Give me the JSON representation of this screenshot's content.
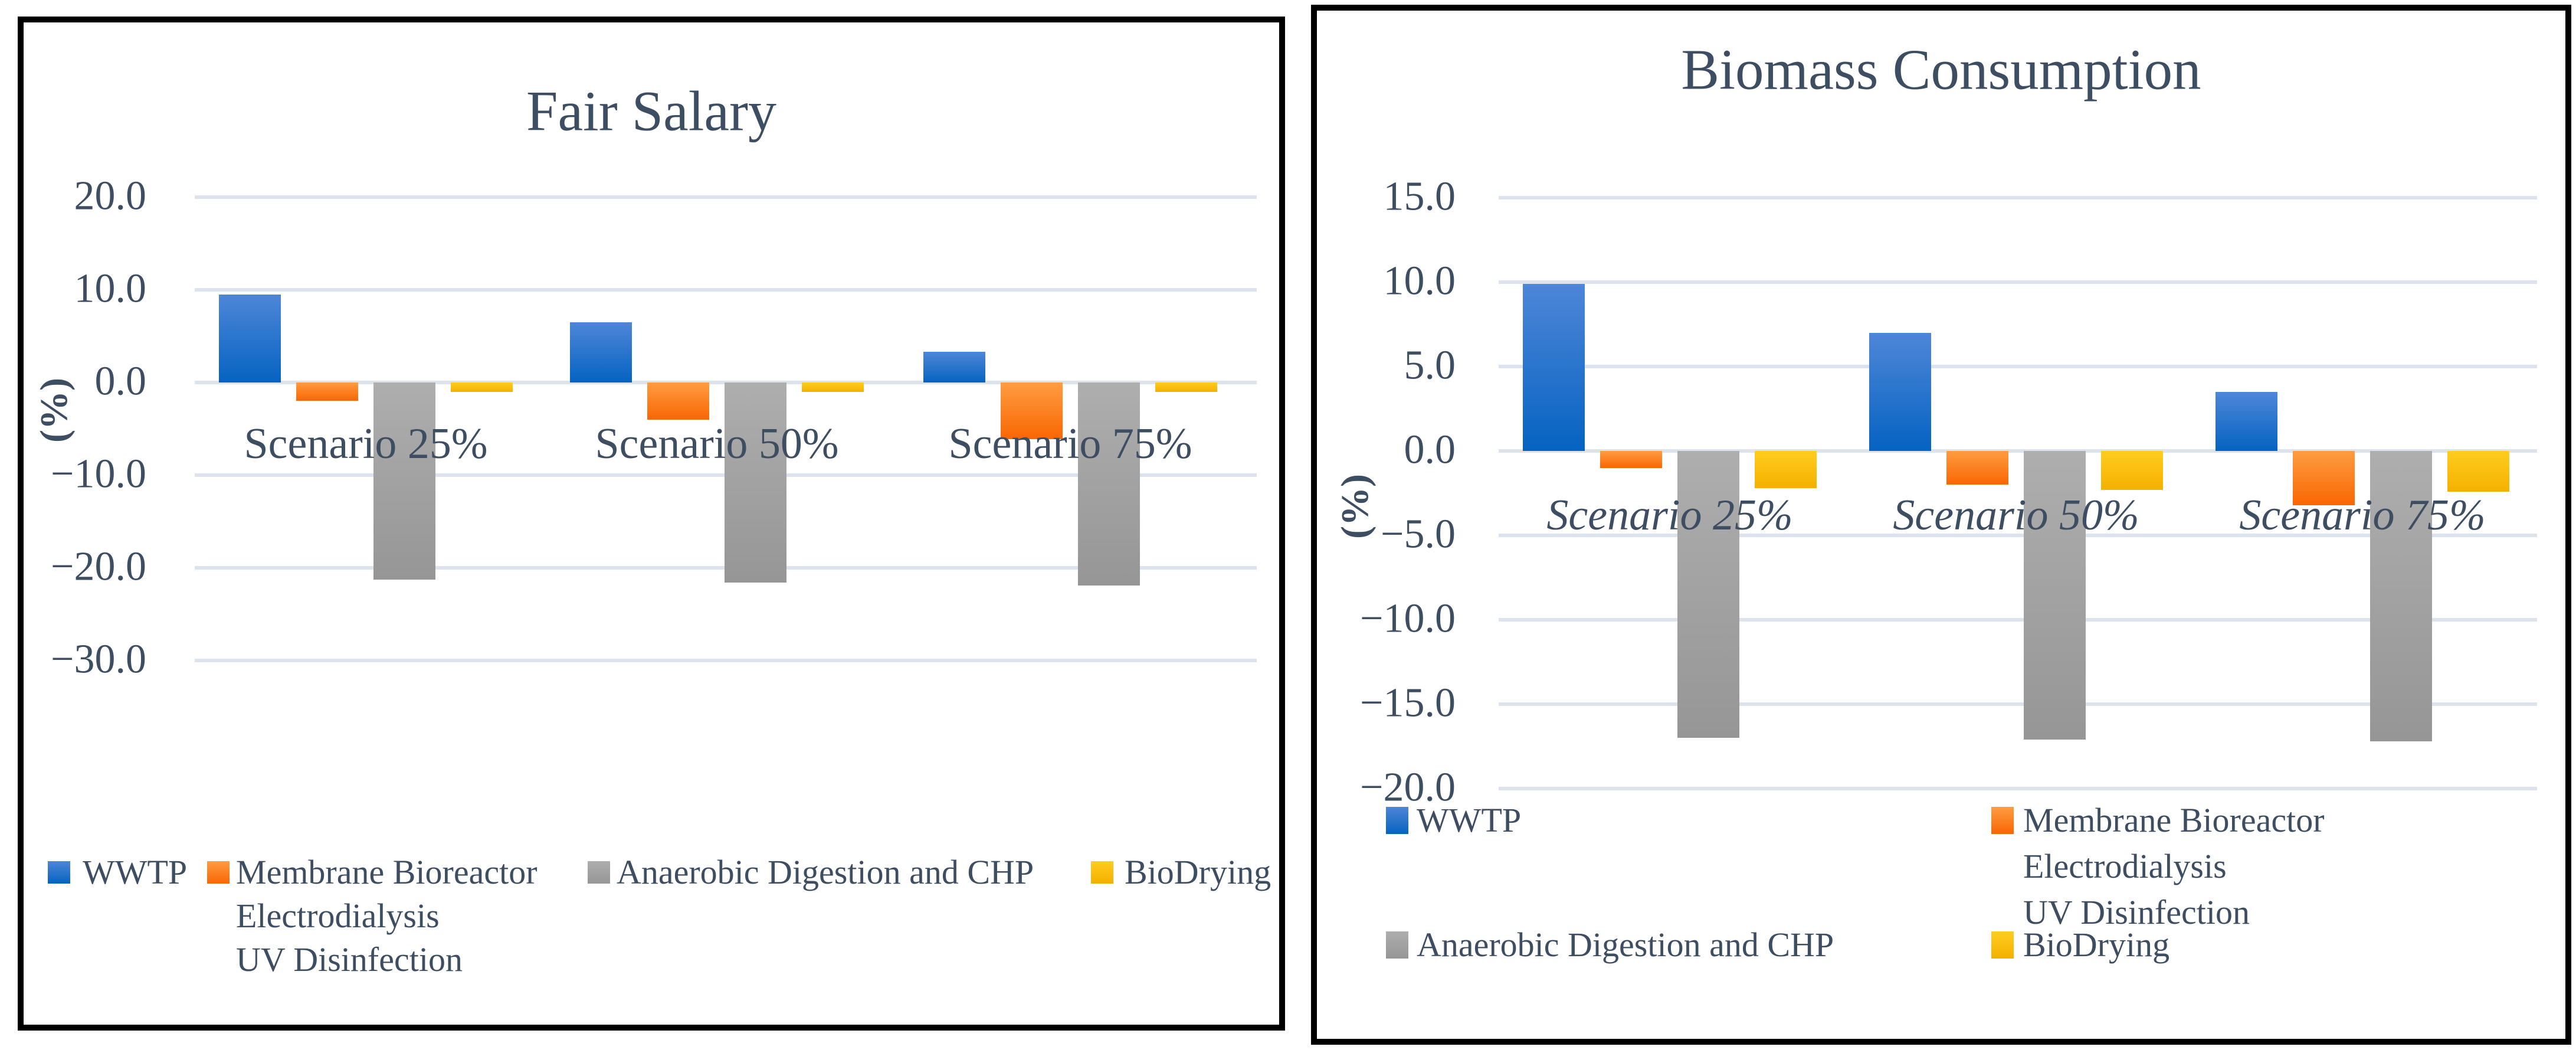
{
  "figure": {
    "panel_titles": [
      "Fair Salary",
      "Biomass Consumption"
    ]
  },
  "colors": {
    "text": "#3D4E63",
    "gridline": "#DCE3ED",
    "frame": "#000000",
    "background": "#FFFFFF",
    "series_gradients": [
      {
        "name": "blue",
        "top": "#4E86D8",
        "bottom": "#0563C1"
      },
      {
        "name": "orange",
        "top": "#FF9C42",
        "bottom": "#F96602"
      },
      {
        "name": "gray",
        "top": "#AFAEAE",
        "bottom": "#969696"
      },
      {
        "name": "yellow",
        "top": "#FFCD1F",
        "bottom": "#F4B000"
      }
    ]
  },
  "chart_data": [
    {
      "type": "bar",
      "title": "Fair Salary",
      "xlabel": "",
      "ylabel": "(%)",
      "categories": [
        "Scenario 25%",
        "Scenario 50%",
        "Scenario 75%"
      ],
      "series": [
        {
          "name": "WWTP",
          "legend_lines": [
            "WWTP"
          ],
          "values": [
            9.5,
            6.5,
            3.3
          ]
        },
        {
          "name": "Membrane Bioreactor Electrodialysis UV Disinfection",
          "legend_lines": [
            "Membrane Bioreactor",
            "Electrodialysis",
            "UV Disinfection"
          ],
          "values": [
            -2.0,
            -4.0,
            -6.1
          ]
        },
        {
          "name": "Anaerobic Digestion and CHP",
          "legend_lines": [
            "Anaerobic Digestion and CHP"
          ],
          "values": [
            -21.3,
            -21.6,
            -21.9
          ]
        },
        {
          "name": "BioDrying",
          "legend_lines": [
            "BioDrying"
          ],
          "values": [
            -1.0,
            -1.0,
            -1.0
          ]
        }
      ],
      "ylim": [
        -30,
        20
      ],
      "ytick_step": 10,
      "ytick_labels": [
        "20.0",
        "10.0",
        "0.0",
        "−10.0",
        "−20.0",
        "−30.0"
      ],
      "grid": true,
      "legend_position": "bottom-row",
      "category_label_style": "normal"
    },
    {
      "type": "bar",
      "title": "Biomass Consumption",
      "xlabel": "",
      "ylabel": "(%)",
      "categories": [
        "Scenario 25%",
        "Scenario 50%",
        "Scenario 75%"
      ],
      "series": [
        {
          "name": "WWTP",
          "legend_lines": [
            "WWTP"
          ],
          "values": [
            9.9,
            7.0,
            3.5
          ]
        },
        {
          "name": "Membrane Bioreactor Electrodialysis UV Disinfection",
          "legend_lines": [
            "Membrane Bioreactor",
            "Electrodialysis",
            "UV Disinfection"
          ],
          "values": [
            -1.0,
            -2.0,
            -3.2
          ]
        },
        {
          "name": "Anaerobic Digestion and CHP",
          "legend_lines": [
            "Anaerobic Digestion and CHP"
          ],
          "values": [
            -17.0,
            -17.1,
            -17.2
          ]
        },
        {
          "name": "BioDrying",
          "legend_lines": [
            "BioDrying"
          ],
          "values": [
            -2.2,
            -2.3,
            -2.4
          ]
        }
      ],
      "ylim": [
        -20,
        15
      ],
      "ytick_step": 5,
      "ytick_labels": [
        "15.0",
        "10.0",
        "5.0",
        "0.0",
        "−5.0",
        "−10.0",
        "−15.0",
        "−20.0"
      ],
      "grid": true,
      "legend_position": "bottom-grid",
      "category_label_style": "italic"
    }
  ]
}
